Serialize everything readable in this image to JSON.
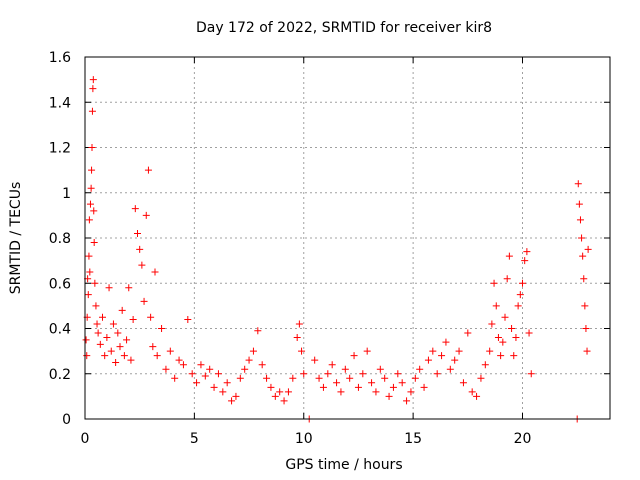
{
  "chart_data": {
    "type": "scatter",
    "title": "Day 172 of 2022, SRMTID for receiver kir8",
    "xlabel": "GPS time / hours",
    "ylabel": "SRMTID / TECUs",
    "xlim": [
      0,
      24
    ],
    "ylim": [
      0,
      1.6
    ],
    "xticks": [
      0,
      5,
      10,
      15,
      20
    ],
    "yticks": [
      0,
      0.2,
      0.4,
      0.6,
      0.8,
      1.0,
      1.2,
      1.4,
      1.6
    ],
    "xtick_labels": [
      "0",
      "5",
      "10",
      "15",
      "20"
    ],
    "ytick_labels": [
      "0",
      "0.2",
      "0.4",
      "0.6",
      "0.8",
      "1",
      "1.2",
      "1.4",
      "1.6"
    ],
    "grid": true,
    "marker": "+",
    "color": "#ff0000",
    "series": [
      {
        "name": "SRMTID",
        "points": [
          [
            0.05,
            0.35
          ],
          [
            0.08,
            0.28
          ],
          [
            0.1,
            0.45
          ],
          [
            0.12,
            0.62
          ],
          [
            0.15,
            0.55
          ],
          [
            0.18,
            0.72
          ],
          [
            0.2,
            0.88
          ],
          [
            0.22,
            0.65
          ],
          [
            0.25,
            0.95
          ],
          [
            0.28,
            1.02
          ],
          [
            0.3,
            1.1
          ],
          [
            0.32,
            1.2
          ],
          [
            0.34,
            1.36
          ],
          [
            0.36,
            1.46
          ],
          [
            0.38,
            1.5
          ],
          [
            0.4,
            0.92
          ],
          [
            0.42,
            0.78
          ],
          [
            0.45,
            0.6
          ],
          [
            0.5,
            0.5
          ],
          [
            0.55,
            0.42
          ],
          [
            0.6,
            0.38
          ],
          [
            0.7,
            0.33
          ],
          [
            0.8,
            0.45
          ],
          [
            0.9,
            0.28
          ],
          [
            1.0,
            0.36
          ],
          [
            1.1,
            0.58
          ],
          [
            1.2,
            0.3
          ],
          [
            1.3,
            0.42
          ],
          [
            1.4,
            0.25
          ],
          [
            1.5,
            0.38
          ],
          [
            1.6,
            0.32
          ],
          [
            1.7,
            0.48
          ],
          [
            1.8,
            0.28
          ],
          [
            1.9,
            0.35
          ],
          [
            2.0,
            0.58
          ],
          [
            2.1,
            0.26
          ],
          [
            2.2,
            0.44
          ],
          [
            2.3,
            0.93
          ],
          [
            2.4,
            0.82
          ],
          [
            2.5,
            0.75
          ],
          [
            2.6,
            0.68
          ],
          [
            2.7,
            0.52
          ],
          [
            2.8,
            0.9
          ],
          [
            2.9,
            1.1
          ],
          [
            3.0,
            0.45
          ],
          [
            3.1,
            0.32
          ],
          [
            3.2,
            0.65
          ],
          [
            3.3,
            0.28
          ],
          [
            3.5,
            0.4
          ],
          [
            3.7,
            0.22
          ],
          [
            3.9,
            0.3
          ],
          [
            4.1,
            0.18
          ],
          [
            4.3,
            0.26
          ],
          [
            4.5,
            0.24
          ],
          [
            4.7,
            0.44
          ],
          [
            4.9,
            0.2
          ],
          [
            5.1,
            0.16
          ],
          [
            5.3,
            0.24
          ],
          [
            5.5,
            0.19
          ],
          [
            5.7,
            0.22
          ],
          [
            5.9,
            0.14
          ],
          [
            6.1,
            0.2
          ],
          [
            6.3,
            0.12
          ],
          [
            6.5,
            0.16
          ],
          [
            6.7,
            0.08
          ],
          [
            6.9,
            0.1
          ],
          [
            7.1,
            0.18
          ],
          [
            7.3,
            0.22
          ],
          [
            7.5,
            0.26
          ],
          [
            7.7,
            0.3
          ],
          [
            7.9,
            0.39
          ],
          [
            8.1,
            0.24
          ],
          [
            8.3,
            0.18
          ],
          [
            8.5,
            0.14
          ],
          [
            8.7,
            0.1
          ],
          [
            8.9,
            0.12
          ],
          [
            9.1,
            0.08
          ],
          [
            9.3,
            0.12
          ],
          [
            9.5,
            0.18
          ],
          [
            9.7,
            0.36
          ],
          [
            9.8,
            0.42
          ],
          [
            9.9,
            0.3
          ],
          [
            10.0,
            0.2
          ],
          [
            10.25,
            0.0
          ],
          [
            10.5,
            0.26
          ],
          [
            10.7,
            0.18
          ],
          [
            10.9,
            0.14
          ],
          [
            11.1,
            0.2
          ],
          [
            11.3,
            0.24
          ],
          [
            11.5,
            0.16
          ],
          [
            11.7,
            0.12
          ],
          [
            11.9,
            0.22
          ],
          [
            12.1,
            0.18
          ],
          [
            12.3,
            0.28
          ],
          [
            12.5,
            0.14
          ],
          [
            12.7,
            0.2
          ],
          [
            12.9,
            0.3
          ],
          [
            13.1,
            0.16
          ],
          [
            13.3,
            0.12
          ],
          [
            13.5,
            0.22
          ],
          [
            13.7,
            0.18
          ],
          [
            13.9,
            0.1
          ],
          [
            14.1,
            0.14
          ],
          [
            14.3,
            0.2
          ],
          [
            14.5,
            0.16
          ],
          [
            14.7,
            0.08
          ],
          [
            14.9,
            0.12
          ],
          [
            15.1,
            0.18
          ],
          [
            15.3,
            0.22
          ],
          [
            15.5,
            0.14
          ],
          [
            15.7,
            0.26
          ],
          [
            15.9,
            0.3
          ],
          [
            16.1,
            0.2
          ],
          [
            16.3,
            0.28
          ],
          [
            16.5,
            0.34
          ],
          [
            16.7,
            0.22
          ],
          [
            16.9,
            0.26
          ],
          [
            17.1,
            0.3
          ],
          [
            17.3,
            0.16
          ],
          [
            17.5,
            0.38
          ],
          [
            17.7,
            0.12
          ],
          [
            17.9,
            0.1
          ],
          [
            18.1,
            0.18
          ],
          [
            18.3,
            0.24
          ],
          [
            18.5,
            0.3
          ],
          [
            18.6,
            0.42
          ],
          [
            18.7,
            0.6
          ],
          [
            18.8,
            0.5
          ],
          [
            18.9,
            0.36
          ],
          [
            19.0,
            0.28
          ],
          [
            19.1,
            0.34
          ],
          [
            19.2,
            0.45
          ],
          [
            19.3,
            0.62
          ],
          [
            19.4,
            0.72
          ],
          [
            19.5,
            0.4
          ],
          [
            19.6,
            0.28
          ],
          [
            19.7,
            0.36
          ],
          [
            19.8,
            0.5
          ],
          [
            19.9,
            0.55
          ],
          [
            20.0,
            0.6
          ],
          [
            20.1,
            0.7
          ],
          [
            20.2,
            0.74
          ],
          [
            20.3,
            0.38
          ],
          [
            20.4,
            0.2
          ],
          [
            22.5,
            0.0
          ],
          [
            22.55,
            1.04
          ],
          [
            22.6,
            0.95
          ],
          [
            22.65,
            0.88
          ],
          [
            22.7,
            0.8
          ],
          [
            22.75,
            0.72
          ],
          [
            22.8,
            0.62
          ],
          [
            22.85,
            0.5
          ],
          [
            22.9,
            0.4
          ],
          [
            22.95,
            0.3
          ],
          [
            23.0,
            0.75
          ]
        ]
      }
    ]
  }
}
